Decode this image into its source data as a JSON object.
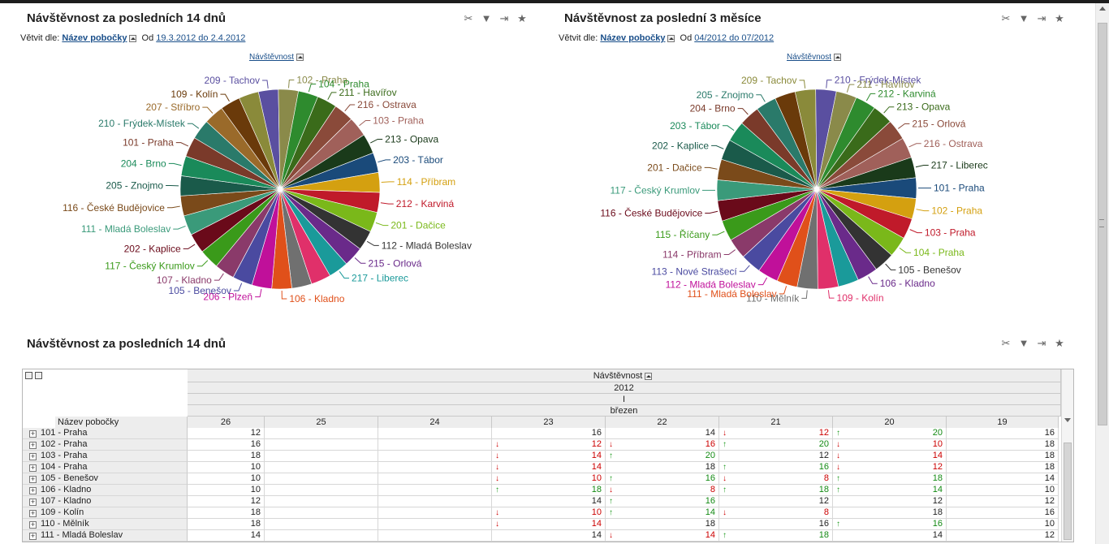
{
  "panel1": {
    "title": "Návštěvnost za posledních 14 dnů",
    "branch_label": "Větvit dle:",
    "dimension": "Název pobočky",
    "from_label": "Od",
    "range": "19.3.2012 do 2.4.2012",
    "measure": "Návštěvnost"
  },
  "panel2": {
    "title": "Návštěvnost za poslední 3 měsíce",
    "branch_label": "Větvit dle:",
    "dimension": "Název pobočky",
    "from_label": "Od",
    "range": "04/2012 do 07/2012",
    "measure": "Návštěvnost"
  },
  "panel3": {
    "title": "Návštěvnost za posledních 14 dnů"
  },
  "tool_icons": [
    "tools-icon",
    "filter-icon",
    "export-icon",
    "favorite-star-icon"
  ],
  "chart_data": [
    {
      "type": "pie",
      "title": "",
      "slices": [
        {
          "label": "209 - Tachov",
          "value": 1,
          "color": "#5a4fa0"
        },
        {
          "label": "102 - Praha",
          "value": 1,
          "color": "#8a8a4a"
        },
        {
          "label": "104 - Praha",
          "value": 1,
          "color": "#2e8b2e"
        },
        {
          "label": "211 - Havířov",
          "value": 1,
          "color": "#3a6b1a"
        },
        {
          "label": "216 - Ostrava",
          "value": 1,
          "color": "#8a4a3a"
        },
        {
          "label": "103 - Praha",
          "value": 1,
          "color": "#a0605a"
        },
        {
          "label": "213 - Opava",
          "value": 1,
          "color": "#1a3a1a"
        },
        {
          "label": "203 - Tábor",
          "value": 1,
          "color": "#1a4a7a"
        },
        {
          "label": "114 - Příbram",
          "value": 1,
          "color": "#d4a010"
        },
        {
          "label": "212 - Karviná",
          "value": 1,
          "color": "#c01a2a"
        },
        {
          "label": "201 - Dačice",
          "value": 1,
          "color": "#7ab81a"
        },
        {
          "label": "112 - Mladá Boleslav",
          "value": 1,
          "color": "#333333"
        },
        {
          "label": "215 - Orlová",
          "value": 1,
          "color": "#6a2a8a"
        },
        {
          "label": "217 - Liberec",
          "value": 1,
          "color": "#1a9a9a"
        },
        {
          "label": "",
          "value": 1,
          "color": "#e0306a"
        },
        {
          "label": "",
          "value": 1,
          "color": "#707070"
        },
        {
          "label": "106 - Kladno",
          "value": 1,
          "color": "#e0501a"
        },
        {
          "label": "206 - Plzeň",
          "value": 1,
          "color": "#c0109a"
        },
        {
          "label": "105 - Benešov",
          "value": 1,
          "color": "#4a4aa0"
        },
        {
          "label": "107 - Kladno",
          "value": 1,
          "color": "#8a3a6a"
        },
        {
          "label": "117 - Český Krumlov",
          "value": 1,
          "color": "#3a9a1a"
        },
        {
          "label": "202 - Kaplice",
          "value": 1,
          "color": "#6a0a1a"
        },
        {
          "label": "111 - Mladá Boleslav",
          "value": 1,
          "color": "#3a9a7a"
        },
        {
          "label": "116 - České Budějovice",
          "value": 1,
          "color": "#7a4a1a"
        },
        {
          "label": "205 - Znojmo",
          "value": 1,
          "color": "#1a5a4a"
        },
        {
          "label": "204 - Brno",
          "value": 1,
          "color": "#1a8a5a"
        },
        {
          "label": "101 - Praha",
          "value": 1,
          "color": "#7a3a2a"
        },
        {
          "label": "210 - Frýdek-Místek",
          "value": 1,
          "color": "#2a7a6a"
        },
        {
          "label": "207 - Stříbro",
          "value": 1,
          "color": "#9a6a2a"
        },
        {
          "label": "109 - Kolín",
          "value": 1,
          "color": "#6a3a0a"
        },
        {
          "label": "",
          "value": 1,
          "color": "#8a8a3a"
        }
      ]
    },
    {
      "type": "pie",
      "title": "",
      "slices": [
        {
          "label": "209 - Tachov",
          "value": 1,
          "color": "#8a8a3a"
        },
        {
          "label": "210 - Frýdek-Místek",
          "value": 1,
          "color": "#5a4fa0"
        },
        {
          "label": "211 - Havířov",
          "value": 1,
          "color": "#8a8a4a"
        },
        {
          "label": "212 - Karviná",
          "value": 1,
          "color": "#2e8b2e"
        },
        {
          "label": "213 - Opava",
          "value": 1,
          "color": "#3a6b1a"
        },
        {
          "label": "215 - Orlová",
          "value": 1,
          "color": "#8a4a3a"
        },
        {
          "label": "216 - Ostrava",
          "value": 1,
          "color": "#a0605a"
        },
        {
          "label": "217 - Liberec",
          "value": 1,
          "color": "#1a3a1a"
        },
        {
          "label": "101 - Praha",
          "value": 1,
          "color": "#1a4a7a"
        },
        {
          "label": "102 - Praha",
          "value": 1,
          "color": "#d4a010"
        },
        {
          "label": "103 - Praha",
          "value": 1,
          "color": "#c01a2a"
        },
        {
          "label": "104 - Praha",
          "value": 1,
          "color": "#7ab81a"
        },
        {
          "label": "105 - Benešov",
          "value": 1,
          "color": "#333333"
        },
        {
          "label": "106 - Kladno",
          "value": 1,
          "color": "#6a2a8a"
        },
        {
          "label": "",
          "value": 1,
          "color": "#1a9a9a"
        },
        {
          "label": "109 - Kolín",
          "value": 1,
          "color": "#e0306a"
        },
        {
          "label": "110 - Mělník",
          "value": 1,
          "color": "#707070"
        },
        {
          "label": "111 - Mladá Boleslav",
          "value": 1,
          "color": "#e0501a"
        },
        {
          "label": "112 - Mladá Boleslav",
          "value": 1,
          "color": "#c0109a"
        },
        {
          "label": "113 - Nové Strašecí",
          "value": 1,
          "color": "#4a4aa0"
        },
        {
          "label": "114 - Příbram",
          "value": 1,
          "color": "#8a3a6a"
        },
        {
          "label": "115 - Říčany",
          "value": 1,
          "color": "#3a9a1a"
        },
        {
          "label": "116 - České Budějovice",
          "value": 1,
          "color": "#6a0a1a"
        },
        {
          "label": "117 - Český Krumlov",
          "value": 1,
          "color": "#3a9a7a"
        },
        {
          "label": "201 - Dačice",
          "value": 1,
          "color": "#7a4a1a"
        },
        {
          "label": "202 - Kaplice",
          "value": 1,
          "color": "#1a5a4a"
        },
        {
          "label": "203 - Tábor",
          "value": 1,
          "color": "#1a8a5a"
        },
        {
          "label": "204 - Brno",
          "value": 1,
          "color": "#7a3a2a"
        },
        {
          "label": "205 - Znojmo",
          "value": 1,
          "color": "#2a7a6a"
        },
        {
          "label": "",
          "value": 1,
          "color": "#6a3a0a"
        }
      ]
    }
  ],
  "pivot": {
    "measure_header": "Návštěvnost",
    "year": "2012",
    "quarter": "I",
    "month": "březen",
    "row_dimension": "Název pobočky",
    "columns": [
      "26",
      "25",
      "24",
      "23",
      "22",
      "21",
      "20",
      "19"
    ],
    "rows": [
      {
        "name": "101 - Praha",
        "cells": [
          {
            "v": "12"
          },
          {
            "v": ""
          },
          {
            "v": ""
          },
          {
            "v": "16"
          },
          {
            "v": "14"
          },
          {
            "v": "12",
            "t": "down"
          },
          {
            "v": "20",
            "t": "up"
          },
          {
            "v": "16"
          }
        ]
      },
      {
        "name": "102 - Praha",
        "cells": [
          {
            "v": "16"
          },
          {
            "v": ""
          },
          {
            "v": ""
          },
          {
            "v": "12",
            "t": "down"
          },
          {
            "v": "16",
            "t": "down"
          },
          {
            "v": "20",
            "t": "up"
          },
          {
            "v": "10",
            "t": "down"
          },
          {
            "v": "18"
          }
        ]
      },
      {
        "name": "103 - Praha",
        "cells": [
          {
            "v": "18"
          },
          {
            "v": ""
          },
          {
            "v": ""
          },
          {
            "v": "14",
            "t": "down"
          },
          {
            "v": "20",
            "t": "up"
          },
          {
            "v": "12"
          },
          {
            "v": "14",
            "t": "down"
          },
          {
            "v": "18"
          }
        ]
      },
      {
        "name": "104 - Praha",
        "cells": [
          {
            "v": "10"
          },
          {
            "v": ""
          },
          {
            "v": ""
          },
          {
            "v": "14",
            "t": "down"
          },
          {
            "v": "18"
          },
          {
            "v": "16",
            "t": "up"
          },
          {
            "v": "12",
            "t": "down"
          },
          {
            "v": "18"
          }
        ]
      },
      {
        "name": "105 - Benešov",
        "cells": [
          {
            "v": "10"
          },
          {
            "v": ""
          },
          {
            "v": ""
          },
          {
            "v": "10",
            "t": "down"
          },
          {
            "v": "16",
            "t": "up"
          },
          {
            "v": "8",
            "t": "down"
          },
          {
            "v": "18",
            "t": "up"
          },
          {
            "v": "14"
          }
        ]
      },
      {
        "name": "106 - Kladno",
        "cells": [
          {
            "v": "10"
          },
          {
            "v": ""
          },
          {
            "v": ""
          },
          {
            "v": "18",
            "t": "up"
          },
          {
            "v": "8",
            "t": "down"
          },
          {
            "v": "18",
            "t": "up"
          },
          {
            "v": "14",
            "t": "up"
          },
          {
            "v": "10"
          }
        ]
      },
      {
        "name": "107 - Kladno",
        "cells": [
          {
            "v": "12"
          },
          {
            "v": ""
          },
          {
            "v": ""
          },
          {
            "v": "14"
          },
          {
            "v": "16",
            "t": "up"
          },
          {
            "v": "12"
          },
          {
            "v": "12"
          },
          {
            "v": "12"
          }
        ]
      },
      {
        "name": "109 - Kolín",
        "cells": [
          {
            "v": "18"
          },
          {
            "v": ""
          },
          {
            "v": ""
          },
          {
            "v": "10",
            "t": "down"
          },
          {
            "v": "14",
            "t": "up"
          },
          {
            "v": "8",
            "t": "down"
          },
          {
            "v": "18"
          },
          {
            "v": "16"
          }
        ]
      },
      {
        "name": "110 - Mělník",
        "cells": [
          {
            "v": "18"
          },
          {
            "v": ""
          },
          {
            "v": ""
          },
          {
            "v": "14",
            "t": "down"
          },
          {
            "v": "18"
          },
          {
            "v": "16"
          },
          {
            "v": "16",
            "t": "up"
          },
          {
            "v": "10"
          }
        ]
      },
      {
        "name": "111 - Mladá Boleslav",
        "cells": [
          {
            "v": "14"
          },
          {
            "v": ""
          },
          {
            "v": ""
          },
          {
            "v": "14"
          },
          {
            "v": "14",
            "t": "down"
          },
          {
            "v": "18",
            "t": "up"
          },
          {
            "v": "14"
          },
          {
            "v": "12"
          }
        ]
      }
    ]
  }
}
